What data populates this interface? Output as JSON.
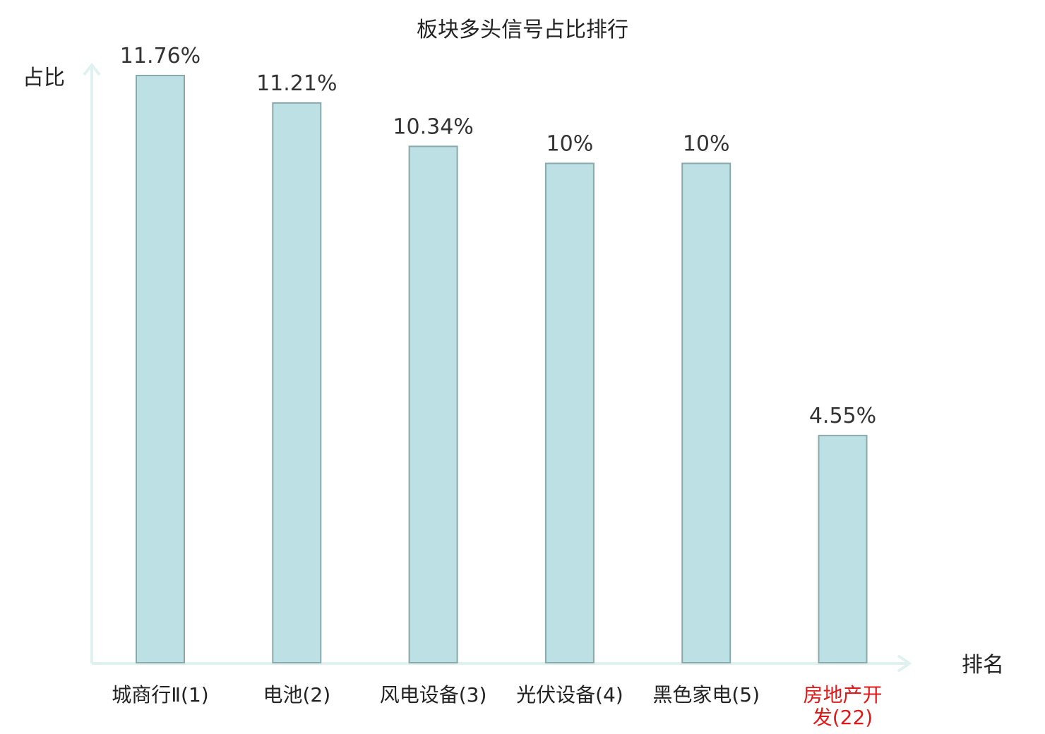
{
  "chart_data": {
    "type": "bar",
    "title": "板块多头信号占比排行",
    "ylabel": "占比",
    "xlabel": "排名",
    "categories": [
      {
        "name": "城商行Ⅱ",
        "rank": "(1)"
      },
      {
        "name": "电池",
        "rank": "(2)"
      },
      {
        "name": "风电设备",
        "rank": "(3)"
      },
      {
        "name": "光伏设备",
        "rank": "(4)"
      },
      {
        "name": "黑色家电",
        "rank": "(5)"
      },
      {
        "name": "房地产开发",
        "rank": "(22)",
        "highlight": true
      }
    ],
    "values": [
      11.76,
      11.21,
      10.34,
      10,
      10,
      4.55
    ],
    "value_labels": [
      "11.76%",
      "11.21%",
      "10.34%",
      "10%",
      "10%",
      "4.55%"
    ],
    "ylim": [
      0,
      12
    ],
    "grid": false,
    "legend": "none",
    "colors": {
      "bar_fill": "#bce0e3",
      "bar_stroke": "#8aa9ab",
      "axis": "#dff2ef",
      "text": "#222222",
      "value_text": "#333333",
      "highlight_text": "#e01818"
    }
  }
}
